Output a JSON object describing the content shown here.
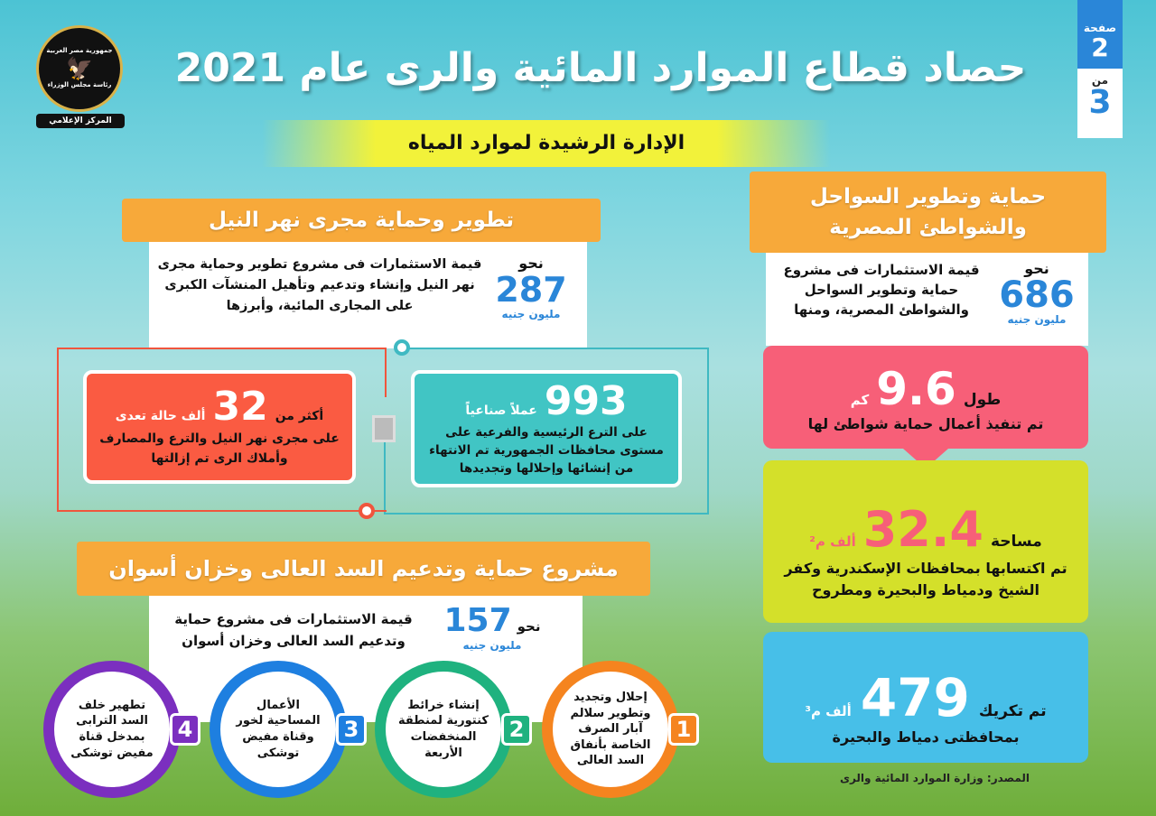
{
  "page_badge": {
    "label": "صفحة",
    "current": "2",
    "of": "من",
    "total": "3"
  },
  "logo": {
    "top": "جمهورية مصر العربية",
    "middle": "رئاسة مجلس الوزراء",
    "bottom": "المركز الإعلامي"
  },
  "title": "حصاد قطاع الموارد المائية والرى عام 2021",
  "subtitle": "الإدارة الرشيدة لموارد المياه",
  "coasts": {
    "heading": "حماية وتطوير السواحل والشواطئ المصرية",
    "approx": "نحو",
    "amount": "686",
    "unit": "مليون جنيه",
    "desc": "قيمة الاستثمارات فى مشروع حماية وتطوير السواحل والشواطئ المصرية، ومنها",
    "c1": {
      "pre": "طول",
      "value": "9.6",
      "unit": "كم",
      "text": "تم تنفيذ أعمال حماية شواطئ لها"
    },
    "c2": {
      "pre": "مساحة",
      "value": "32.4",
      "unit": "ألف م²",
      "text": "تم اكتسابها بمحافظات الإسكندرية وكفر الشيخ ودمياط والبحيرة ومطروح"
    },
    "c3": {
      "pre": "تم تكريك",
      "value": "479",
      "unit": "ألف م³",
      "text": "بمحافظتى دمياط والبحيرة"
    },
    "source": "المصدر: وزارة الموارد المائية والرى"
  },
  "nile": {
    "heading": "تطوير وحماية مجرى نهر النيل",
    "approx": "نحو",
    "amount": "287",
    "unit": "مليون جنيه",
    "desc": "قيمة الاستثمارات فى مشروع تطوير وحماية مجرى نهر النيل وإنشاء وتدعيم وتأهيل المنشآت الكبرى على المجارى المائية، وأبرزها",
    "works": {
      "value": "993",
      "unit": "عملاً صناعياً",
      "text": "على الترع الرئيسية والفرعية على مستوى محافظات الجمهورية تم الانتهاء من إنشائها وإحلالها وتجديدها"
    },
    "violations": {
      "pre": "أكثر من",
      "value": "32",
      "unit": "ألف حالة تعدى",
      "text": "على مجرى نهر النيل والترع والمصارف وأملاك الرى تم إزالتها"
    }
  },
  "dam": {
    "heading": "مشروع حماية وتدعيم السد العالى وخزان أسوان",
    "approx": "نحو",
    "amount": "157",
    "unit": "مليون جنيه",
    "desc": "قيمة الاستثمارات فى مشروع حماية وتدعيم السد العالى وخزان أسوان",
    "items": [
      {
        "n": "1",
        "text": "إحلال وتجديد وتطوير سلالم آبار الصرف الخاصة بأنفاق السد العالى",
        "color": "#f5841f"
      },
      {
        "n": "2",
        "text": "إنشاء خرائط كنتورية لمنطقة المنخفضات الأربعة",
        "color": "#1fb27f"
      },
      {
        "n": "3",
        "text": "الأعمال المساحية لخور وقناة مفيض توشكى",
        "color": "#1e7fe0"
      },
      {
        "n": "4",
        "text": "تطهير خلف السد الترابى بمدخل قناة مفيض توشكى",
        "color": "#7b2fbf"
      }
    ]
  }
}
